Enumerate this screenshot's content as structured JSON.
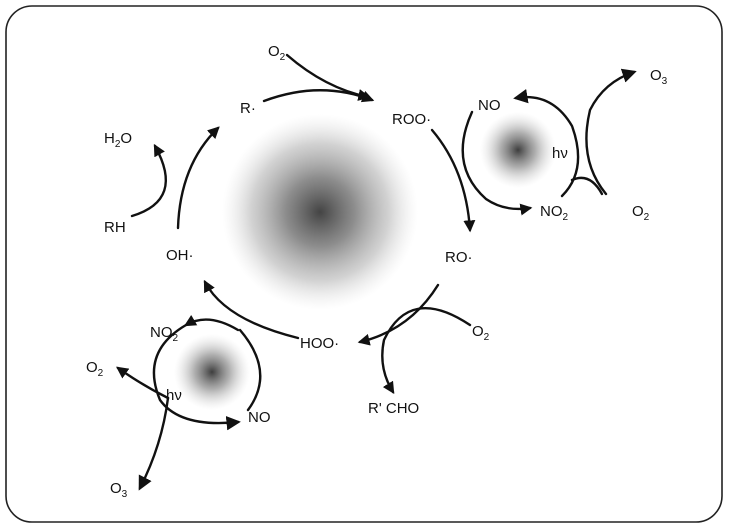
{
  "labels": {
    "r_radical": "R·",
    "roo_radical": "ROO·",
    "ro_radical": "RO·",
    "hoo_radical": "HOO·",
    "oh_radical": "OH·",
    "rh": "RH",
    "h2o": "H",
    "h2o_sub": "2",
    "h2o_tail": "O",
    "o2_top": "O",
    "o2_top_sub": "2",
    "no_top": "NO",
    "no2_top": "NO",
    "no2_top_sub": "2",
    "o3_top": "O",
    "o3_top_sub": "3",
    "o2_right": "O",
    "o2_right_sub": "2",
    "hv_top": "hν",
    "o2_mid": "O",
    "o2_mid_sub": "2",
    "rcho": "R' CHO",
    "no2_bottom": "NO",
    "no2_bottom_sub": "2",
    "no_bottom": "NO",
    "o2_left": "O",
    "o2_left_sub": "2",
    "o3_bottom": "O",
    "o3_bottom_sub": "3",
    "hv_bottom": "hν"
  },
  "colors": {
    "ink": "#111111",
    "border": "#222222",
    "background": "#ffffff"
  }
}
